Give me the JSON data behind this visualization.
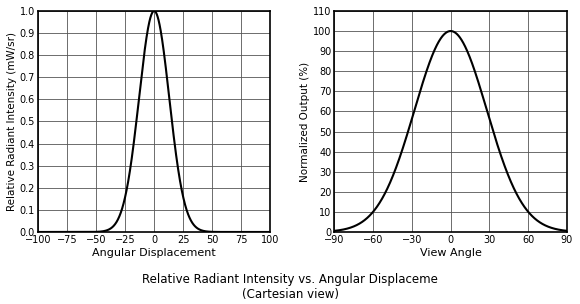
{
  "left_plot": {
    "xlabel": "Angular Displacement",
    "ylabel": "Relative Radiant Intensity (mW/sr)",
    "xlim": [
      -100,
      100
    ],
    "xticks": [
      -100,
      -75,
      -50,
      -25,
      0,
      25,
      50,
      75,
      100
    ],
    "ylim": [
      0,
      1.0
    ],
    "yticks": [
      0,
      0.1,
      0.2,
      0.3,
      0.4,
      0.5,
      0.6,
      0.7,
      0.8,
      0.9,
      1.0
    ],
    "curve_sigma": 13,
    "curve_peak": 1.0,
    "line_color": "#000000",
    "line_width": 1.5
  },
  "right_plot": {
    "xlabel": "View Angle",
    "ylabel": "Normalized Output (%)",
    "xlim": [
      -90,
      90
    ],
    "xticks": [
      -90,
      -60,
      -30,
      0,
      30,
      60,
      90
    ],
    "ylim": [
      0,
      110
    ],
    "yticks": [
      0,
      10,
      20,
      30,
      40,
      50,
      60,
      70,
      80,
      90,
      100,
      110
    ],
    "curve_sigma": 28,
    "curve_peak": 100.0,
    "line_color": "#000000",
    "line_width": 1.5
  },
  "title_line1": "Relative Radiant Intensity vs. Angular Displaceme",
  "title_line2": "(Cartesian view)",
  "title_fontsize": 8.5,
  "background_color": "#ffffff",
  "grid_color": "#555555",
  "tick_fontsize": 7,
  "label_fontsize": 8,
  "ylabel_fontsize": 7.5
}
